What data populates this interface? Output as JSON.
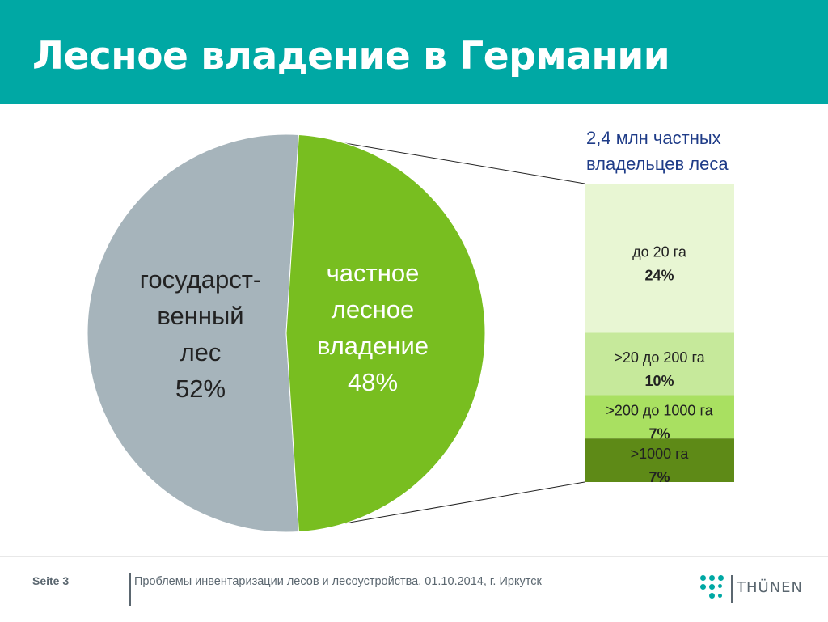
{
  "slide": {
    "title": "Лесное владение в Германии",
    "page_label": "Seite 3",
    "footer_text": "Проблемы инвентаризации лесов и лесоустройства, 01.10.2014, г. Иркутск",
    "logo_text": "THÜNEN"
  },
  "colors": {
    "header": "#00a8a4",
    "state_forest": "#a6b4bb",
    "private_forest": "#78be20",
    "bar_24": "#e8f6d3",
    "bar_10": "#c6e99b",
    "bar_7a": "#a9e061",
    "bar_7b": "#5e8a17",
    "subtitle": "#1f3c88"
  },
  "chart_data": [
    {
      "type": "pie",
      "slices": [
        {
          "label_lines": [
            "государст-",
            "венный",
            "лес",
            "52%"
          ],
          "value": 52,
          "color": "#a6b4bb",
          "label_color": "#222222"
        },
        {
          "label_lines": [
            "частное",
            "лесное",
            "владение",
            "48%"
          ],
          "value": 48,
          "color": "#78be20",
          "label_color": "#ffffff"
        }
      ]
    },
    {
      "type": "bar",
      "stacked": true,
      "title_lines": [
        "2,4 млн частных",
        "владельцев леса"
      ],
      "segments": [
        {
          "label": "до 20 га",
          "value_label": "24%",
          "value": 24,
          "color": "#e8f6d3"
        },
        {
          "label": ">20 до 200 га",
          "value_label": "10%",
          "value": 10,
          "color": "#c6e99b"
        },
        {
          "label": ">200 до 1000 га",
          "value_label": "7%",
          "value": 7,
          "color": "#a9e061"
        },
        {
          "label": ">1000 га",
          "value_label": "7%",
          "value": 7,
          "color": "#5e8a17"
        }
      ]
    }
  ]
}
